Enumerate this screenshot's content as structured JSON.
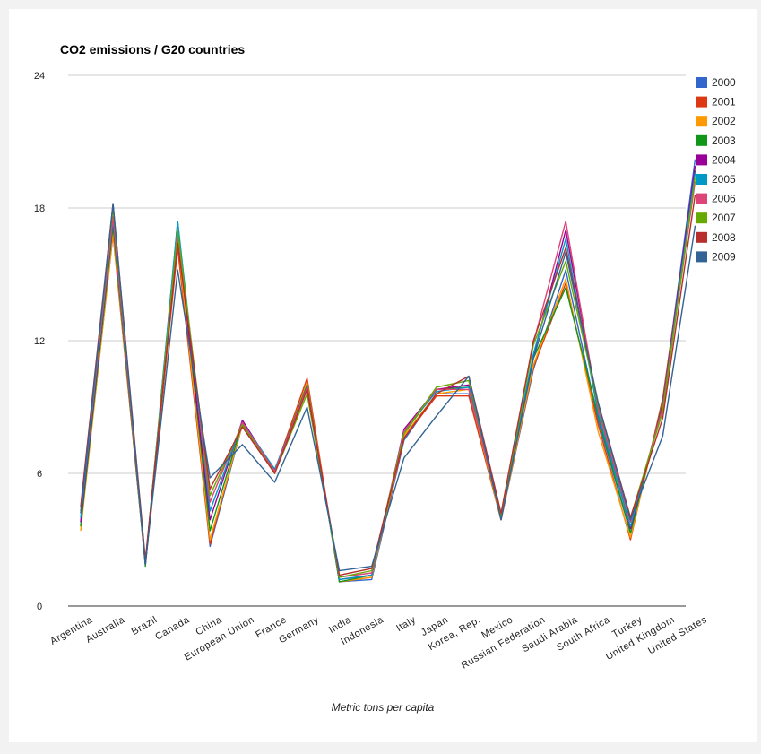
{
  "chart_data": {
    "type": "line",
    "title": "CO2 emissions / G20 countries",
    "xlabel": "Metric tons per capita",
    "ylabel": "",
    "ylim": [
      0,
      24
    ],
    "yticks": [
      0,
      6,
      12,
      18,
      24
    ],
    "grid": true,
    "legend_position": "right",
    "categories": [
      "Argentina",
      "Australia",
      "Brazil",
      "Canada",
      "China",
      "European Union",
      "France",
      "Germany",
      "India",
      "Indonesia",
      "Italy",
      "Japan",
      "Korea, Rep.",
      "Mexico",
      "Russian Federation",
      "Saudi Arabia",
      "South Africa",
      "Turkey",
      "United Kingdom",
      "United States"
    ],
    "series": [
      {
        "name": "2000",
        "color": "#3366cc",
        "values": [
          3.8,
          17.2,
          1.9,
          17.4,
          2.7,
          8.2,
          6.0,
          10.1,
          1.1,
          1.2,
          7.5,
          9.6,
          9.6,
          3.9,
          10.7,
          15.2,
          8.4,
          3.3,
          9.2,
          20.2
        ]
      },
      {
        "name": "2001",
        "color": "#dc3912",
        "values": [
          3.6,
          16.8,
          1.9,
          16.2,
          2.8,
          8.3,
          6.1,
          10.3,
          1.1,
          1.3,
          7.6,
          9.5,
          9.5,
          3.9,
          10.8,
          14.6,
          8.2,
          3.0,
          9.4,
          19.6
        ]
      },
      {
        "name": "2002",
        "color": "#ff9900",
        "values": [
          3.4,
          16.9,
          1.9,
          16.5,
          3.0,
          8.2,
          6.0,
          10.1,
          1.1,
          1.3,
          7.7,
          9.6,
          9.8,
          3.9,
          10.9,
          14.8,
          7.9,
          3.1,
          9.2,
          19.7
        ]
      },
      {
        "name": "2003",
        "color": "#109618",
        "values": [
          3.6,
          17.2,
          1.8,
          17.0,
          3.4,
          8.3,
          6.1,
          10.0,
          1.1,
          1.4,
          7.8,
          9.8,
          9.9,
          4.0,
          11.2,
          14.4,
          8.6,
          3.3,
          9.2,
          19.7
        ]
      },
      {
        "name": "2004",
        "color": "#990099",
        "values": [
          3.8,
          17.4,
          1.9,
          16.8,
          3.9,
          8.4,
          6.1,
          9.9,
          1.2,
          1.4,
          8.0,
          9.8,
          10.0,
          4.0,
          11.3,
          17.0,
          9.0,
          3.5,
          9.1,
          19.9
        ]
      },
      {
        "name": "2005",
        "color": "#0099c6",
        "values": [
          4.0,
          17.5,
          1.9,
          17.4,
          4.3,
          8.3,
          6.2,
          9.8,
          1.2,
          1.4,
          7.9,
          9.7,
          9.9,
          4.1,
          11.4,
          16.6,
          8.7,
          3.6,
          9.0,
          19.6
        ]
      },
      {
        "name": "2006",
        "color": "#dd4477",
        "values": [
          4.2,
          17.6,
          1.9,
          16.8,
          4.7,
          8.3,
          6.1,
          9.9,
          1.3,
          1.5,
          7.9,
          9.8,
          9.8,
          4.1,
          11.9,
          17.4,
          8.9,
          3.8,
          9.0,
          19.2
        ]
      },
      {
        "name": "2007",
        "color": "#66aa00",
        "values": [
          4.3,
          18.0,
          2.0,
          17.0,
          5.0,
          8.2,
          6.0,
          9.6,
          1.3,
          1.6,
          7.8,
          9.9,
          10.2,
          4.1,
          11.8,
          15.6,
          9.1,
          4.0,
          8.8,
          19.4
        ]
      },
      {
        "name": "2008",
        "color": "#b82e2e",
        "values": [
          4.5,
          18.2,
          2.1,
          16.4,
          5.3,
          8.1,
          6.0,
          9.8,
          1.4,
          1.7,
          7.6,
          9.6,
          10.4,
          4.2,
          12.0,
          16.2,
          9.2,
          4.0,
          8.5,
          18.6
        ]
      },
      {
        "name": "2009",
        "color": "#316395",
        "values": [
          4.2,
          18.2,
          1.9,
          15.2,
          5.8,
          7.3,
          5.6,
          9.0,
          1.6,
          1.8,
          6.7,
          8.6,
          10.4,
          3.9,
          11.2,
          16.0,
          9.2,
          3.9,
          7.7,
          17.2
        ]
      }
    ]
  }
}
